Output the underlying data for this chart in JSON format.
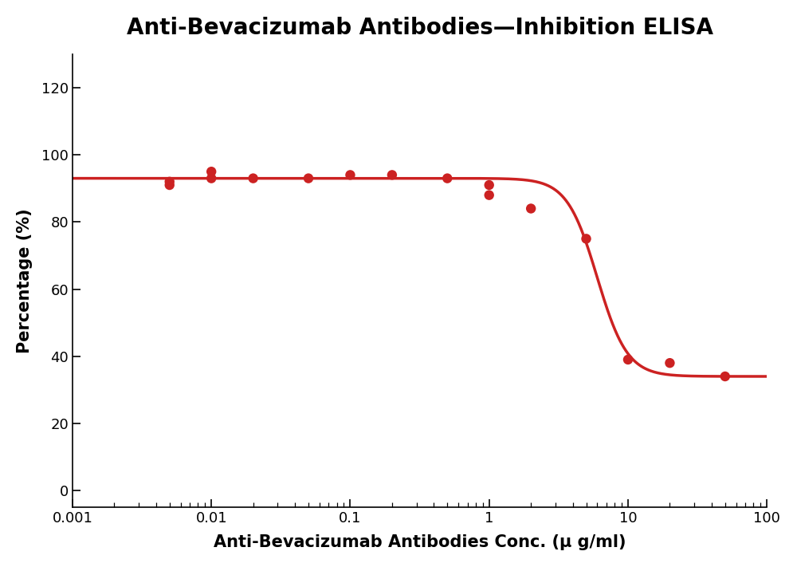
{
  "title": "Anti-Bevacizumab Antibodies—Inhibition ELISA",
  "xlabel": "Anti-Bevacizumab Antibodies Conc. (μ g/ml)",
  "ylabel": "Percentage (%)",
  "curve_color": "#CC2222",
  "dot_color": "#CC2222",
  "dot_size": 80,
  "xlim_log": [
    -3,
    2
  ],
  "ylim": [
    -5,
    130
  ],
  "yticks": [
    0,
    20,
    40,
    60,
    80,
    100,
    120
  ],
  "xticks": [
    0.001,
    0.01,
    0.1,
    1,
    10,
    100
  ],
  "data_x": [
    0.005,
    0.005,
    0.01,
    0.01,
    0.02,
    0.05,
    0.1,
    0.2,
    0.5,
    1.0,
    1.0,
    2.0,
    5.0,
    10.0,
    20.0,
    50.0
  ],
  "data_y": [
    92,
    91,
    95,
    93,
    93,
    93,
    94,
    94,
    93,
    91,
    88,
    84,
    75,
    39,
    38,
    34
  ],
  "title_fontsize": 20,
  "label_fontsize": 15,
  "tick_fontsize": 13,
  "background_color": "#ffffff",
  "line_width": 2.5,
  "figsize": [
    10.0,
    7.11
  ],
  "dpi": 100
}
